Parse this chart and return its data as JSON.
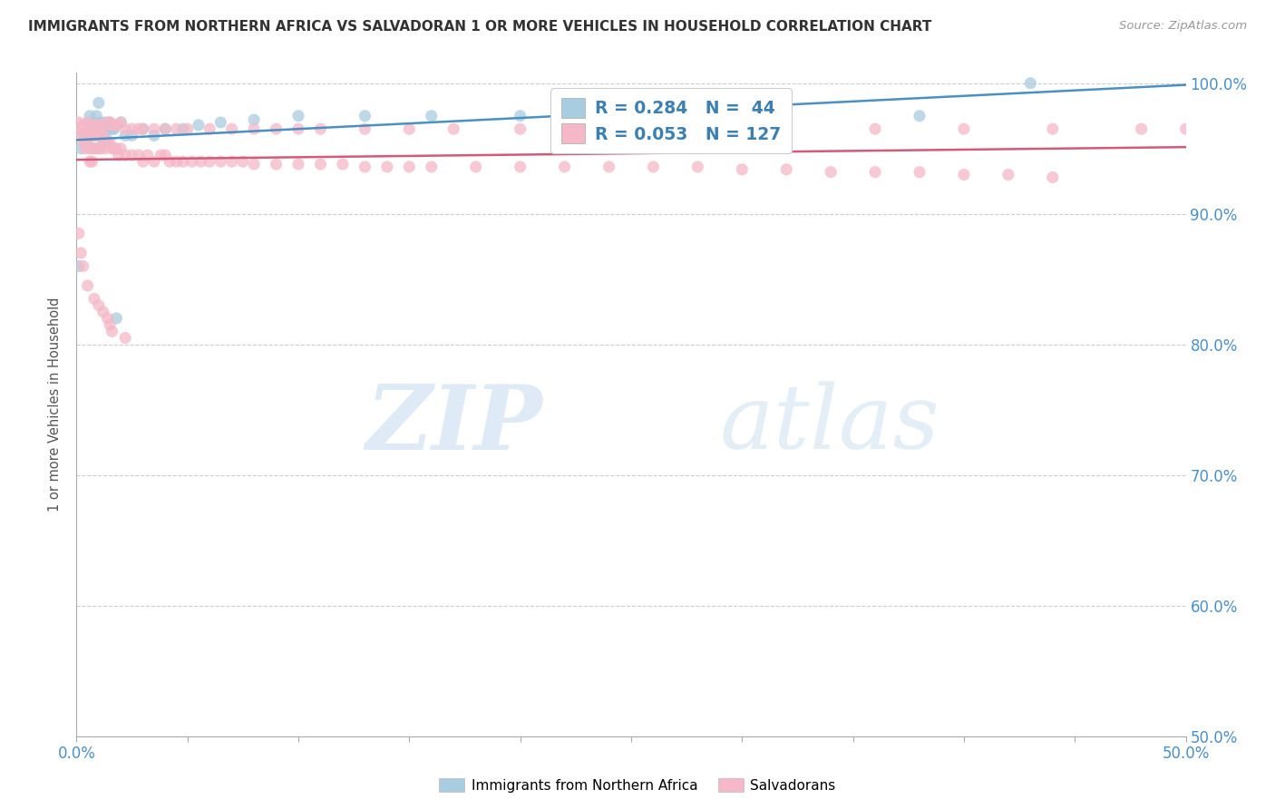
{
  "title": "IMMIGRANTS FROM NORTHERN AFRICA VS SALVADORAN 1 OR MORE VEHICLES IN HOUSEHOLD CORRELATION CHART",
  "source": "Source: ZipAtlas.com",
  "ylabel": "1 or more Vehicles in Household",
  "xmin": 0.0,
  "xmax": 0.5,
  "ymin": 0.5,
  "ymax": 1.008,
  "color_blue": "#a8cce0",
  "color_pink": "#f4b8c8",
  "trendline_blue": "#4a90c4",
  "trendline_pink": "#d45a7a",
  "watermark_zip": "ZIP",
  "watermark_atlas": "atlas",
  "blue_x": [
    0.001,
    0.002,
    0.003,
    0.004,
    0.005,
    0.006,
    0.006,
    0.007,
    0.008,
    0.008,
    0.009,
    0.009,
    0.01,
    0.01,
    0.01,
    0.011,
    0.011,
    0.012,
    0.012,
    0.013,
    0.013,
    0.014,
    0.015,
    0.016,
    0.017,
    0.018,
    0.02,
    0.022,
    0.025,
    0.03,
    0.035,
    0.04,
    0.048,
    0.055,
    0.065,
    0.08,
    0.1,
    0.13,
    0.16,
    0.2,
    0.25,
    0.3,
    0.38,
    0.43
  ],
  "blue_y": [
    0.86,
    0.95,
    0.96,
    0.955,
    0.96,
    0.97,
    0.975,
    0.965,
    0.96,
    0.95,
    0.965,
    0.975,
    0.97,
    0.965,
    0.985,
    0.97,
    0.96,
    0.965,
    0.955,
    0.97,
    0.96,
    0.965,
    0.97,
    0.965,
    0.965,
    0.82,
    0.97,
    0.96,
    0.96,
    0.965,
    0.96,
    0.965,
    0.965,
    0.968,
    0.97,
    0.972,
    0.975,
    0.975,
    0.975,
    0.975,
    0.975,
    0.975,
    0.975,
    1.0
  ],
  "pink_x": [
    0.001,
    0.001,
    0.002,
    0.002,
    0.003,
    0.003,
    0.003,
    0.004,
    0.004,
    0.005,
    0.005,
    0.005,
    0.006,
    0.006,
    0.006,
    0.007,
    0.007,
    0.007,
    0.008,
    0.008,
    0.009,
    0.009,
    0.01,
    0.01,
    0.01,
    0.011,
    0.011,
    0.012,
    0.012,
    0.013,
    0.013,
    0.014,
    0.014,
    0.015,
    0.015,
    0.016,
    0.016,
    0.017,
    0.018,
    0.019,
    0.02,
    0.022,
    0.022,
    0.025,
    0.028,
    0.03,
    0.032,
    0.035,
    0.038,
    0.04,
    0.042,
    0.045,
    0.048,
    0.052,
    0.056,
    0.06,
    0.065,
    0.07,
    0.075,
    0.08,
    0.09,
    0.1,
    0.11,
    0.12,
    0.13,
    0.14,
    0.15,
    0.16,
    0.18,
    0.2,
    0.22,
    0.24,
    0.26,
    0.28,
    0.3,
    0.32,
    0.34,
    0.36,
    0.38,
    0.4,
    0.42,
    0.44,
    0.001,
    0.002,
    0.003,
    0.004,
    0.005,
    0.006,
    0.007,
    0.008,
    0.009,
    0.01,
    0.011,
    0.012,
    0.013,
    0.014,
    0.015,
    0.016,
    0.017,
    0.018,
    0.02,
    0.022,
    0.025,
    0.028,
    0.03,
    0.035,
    0.04,
    0.045,
    0.05,
    0.06,
    0.07,
    0.08,
    0.09,
    0.1,
    0.11,
    0.13,
    0.15,
    0.17,
    0.2,
    0.24,
    0.28,
    0.32,
    0.36,
    0.4,
    0.44,
    0.48,
    0.5
  ],
  "pink_y": [
    0.96,
    0.885,
    0.965,
    0.87,
    0.965,
    0.955,
    0.86,
    0.96,
    0.95,
    0.96,
    0.955,
    0.845,
    0.96,
    0.95,
    0.94,
    0.96,
    0.95,
    0.94,
    0.96,
    0.835,
    0.96,
    0.95,
    0.96,
    0.95,
    0.83,
    0.96,
    0.95,
    0.96,
    0.825,
    0.955,
    0.95,
    0.955,
    0.82,
    0.955,
    0.815,
    0.95,
    0.81,
    0.95,
    0.95,
    0.945,
    0.95,
    0.945,
    0.805,
    0.945,
    0.945,
    0.94,
    0.945,
    0.94,
    0.945,
    0.945,
    0.94,
    0.94,
    0.94,
    0.94,
    0.94,
    0.94,
    0.94,
    0.94,
    0.94,
    0.938,
    0.938,
    0.938,
    0.938,
    0.938,
    0.936,
    0.936,
    0.936,
    0.936,
    0.936,
    0.936,
    0.936,
    0.936,
    0.936,
    0.936,
    0.934,
    0.934,
    0.932,
    0.932,
    0.932,
    0.93,
    0.93,
    0.928,
    0.97,
    0.965,
    0.968,
    0.968,
    0.97,
    0.968,
    0.968,
    0.968,
    0.968,
    0.968,
    0.968,
    0.968,
    0.968,
    0.97,
    0.97,
    0.968,
    0.968,
    0.968,
    0.97,
    0.965,
    0.965,
    0.965,
    0.965,
    0.965,
    0.965,
    0.965,
    0.965,
    0.965,
    0.965,
    0.965,
    0.965,
    0.965,
    0.965,
    0.965,
    0.965,
    0.965,
    0.965,
    0.965,
    0.965,
    0.965,
    0.965,
    0.965,
    0.965,
    0.965,
    0.965
  ]
}
